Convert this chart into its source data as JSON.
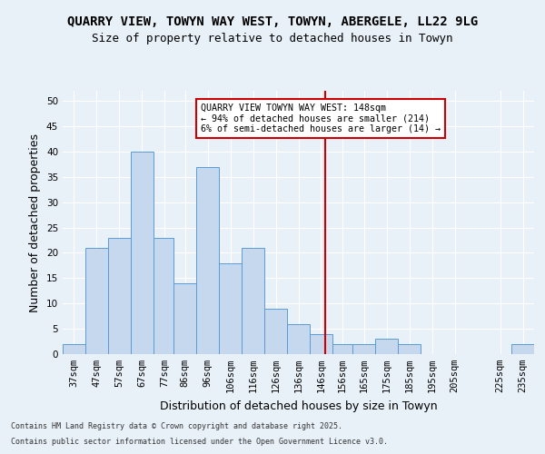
{
  "title": "QUARRY VIEW, TOWYN WAY WEST, TOWYN, ABERGELE, LL22 9LG",
  "subtitle": "Size of property relative to detached houses in Towyn",
  "xlabel": "Distribution of detached houses by size in Towyn",
  "ylabel": "Number of detached properties",
  "footnote1": "Contains HM Land Registry data © Crown copyright and database right 2025.",
  "footnote2": "Contains public sector information licensed under the Open Government Licence v3.0.",
  "annotation_title": "QUARRY VIEW TOWYN WAY WEST: 148sqm",
  "annotation_line1": "← 94% of detached houses are smaller (214)",
  "annotation_line2": "6% of semi-detached houses are larger (14) →",
  "vline_x": 148,
  "bar_labels": [
    "37sqm",
    "47sqm",
    "57sqm",
    "67sqm",
    "77sqm",
    "86sqm",
    "96sqm",
    "106sqm",
    "116sqm",
    "126sqm",
    "136sqm",
    "146sqm",
    "156sqm",
    "165sqm",
    "175sqm",
    "185sqm",
    "195sqm",
    "205sqm",
    "225sqm",
    "235sqm"
  ],
  "bar_left_edges": [
    32,
    42,
    52,
    62,
    72,
    81,
    91,
    101,
    111,
    121,
    131,
    141,
    151,
    160,
    170,
    180,
    190,
    200,
    220,
    230
  ],
  "bar_right_edges": [
    42,
    52,
    62,
    72,
    81,
    91,
    101,
    111,
    121,
    131,
    141,
    151,
    160,
    170,
    180,
    190,
    200,
    210,
    230,
    240
  ],
  "bar_centers": [
    37,
    47,
    57,
    67,
    77,
    86,
    96,
    106,
    116,
    126,
    136,
    146,
    155.5,
    165,
    175,
    185,
    195,
    205,
    225,
    235
  ],
  "bar_heights": [
    2,
    21,
    23,
    40,
    23,
    14,
    37,
    18,
    21,
    9,
    6,
    4,
    2,
    2,
    3,
    2,
    0,
    0,
    0,
    2
  ],
  "bar_color": "#c5d8ed",
  "bar_edge_color": "#5b9bd5",
  "vline_color": "#cc0000",
  "background_color": "#e8f0f8",
  "plot_bg_color": "#e8f0f8",
  "grid_color": "#ffffff",
  "ylim": [
    0,
    52
  ],
  "yticks": [
    0,
    5,
    10,
    15,
    20,
    25,
    30,
    35,
    40,
    45,
    50
  ],
  "annotation_box_color": "#ffffff",
  "annotation_box_edge": "#cc0000",
  "title_fontsize": 10,
  "subtitle_fontsize": 9,
  "tick_fontsize": 7.5,
  "label_fontsize": 9,
  "xlim_left": 32,
  "xlim_right": 240
}
